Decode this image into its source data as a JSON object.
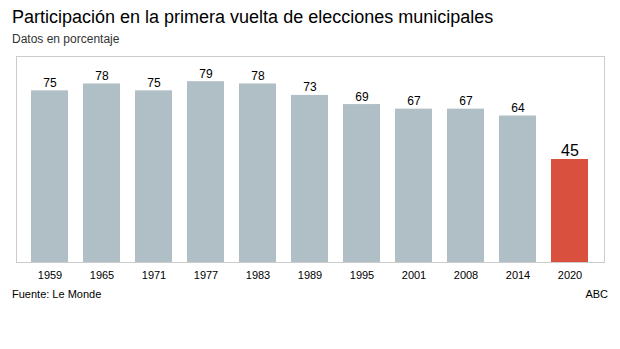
{
  "chart_data": {
    "type": "bar",
    "title": "Participación en la primera vuelta de elecciones municipales",
    "subtitle": "Datos en porcentaje",
    "annotations": [
      "Fuente: Le Monde",
      "ABC"
    ],
    "categories": [
      "1959",
      "1965",
      "1971",
      "1977",
      "1983",
      "1989",
      "1995",
      "2001",
      "2008",
      "2014",
      "2020"
    ],
    "values": [
      75,
      78,
      75,
      79,
      78,
      73,
      69,
      67,
      67,
      64,
      45
    ],
    "colors": [
      "#b0bec5",
      "#b0bec5",
      "#b0bec5",
      "#b0bec5",
      "#b0bec5",
      "#b0bec5",
      "#b0bec5",
      "#b0bec5",
      "#b0bec5",
      "#b0bec5",
      "#d9503f"
    ],
    "ylim": [
      0,
      90
    ],
    "grid": false,
    "data_labels": true,
    "tick_labels": "x"
  }
}
